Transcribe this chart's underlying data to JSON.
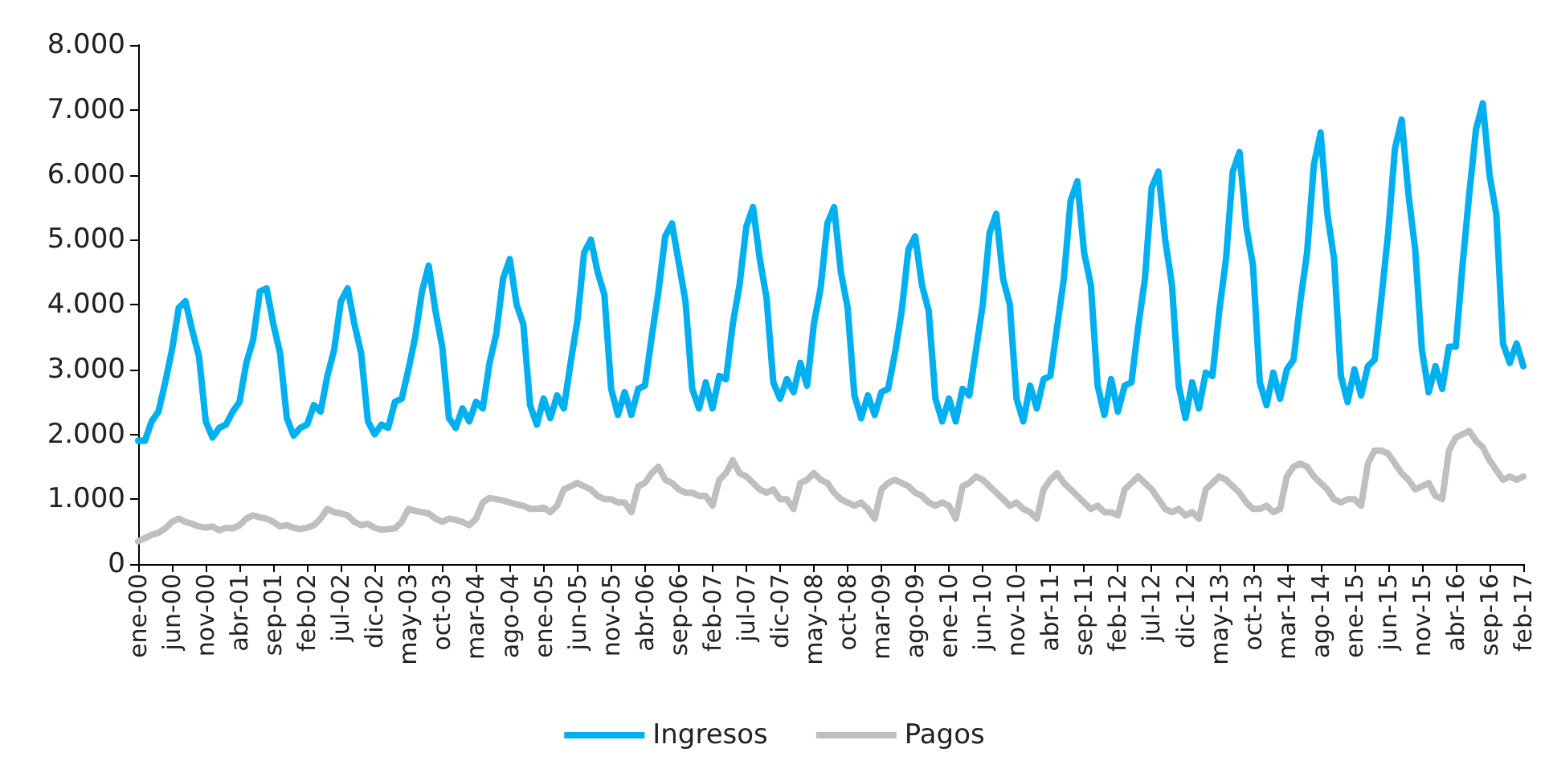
{
  "chart_data": {
    "type": "line",
    "categories": [
      "ene-00",
      null,
      null,
      null,
      null,
      "jun-00",
      null,
      null,
      null,
      null,
      "nov-00",
      null,
      null,
      null,
      null,
      "abr-01",
      null,
      null,
      null,
      null,
      "sep-01",
      null,
      null,
      null,
      null,
      "feb-02",
      null,
      null,
      null,
      null,
      "jul-02",
      null,
      null,
      null,
      null,
      "dic-02",
      null,
      null,
      null,
      null,
      "may-03",
      null,
      null,
      null,
      null,
      "oct-03",
      null,
      null,
      null,
      null,
      "mar-04",
      null,
      null,
      null,
      null,
      "ago-04",
      null,
      null,
      null,
      null,
      "ene-05",
      null,
      null,
      null,
      null,
      "jun-05",
      null,
      null,
      null,
      null,
      "nov-05",
      null,
      null,
      null,
      null,
      "abr-06",
      null,
      null,
      null,
      null,
      "sep-06",
      null,
      null,
      null,
      null,
      "feb-07",
      null,
      null,
      null,
      null,
      "jul-07",
      null,
      null,
      null,
      null,
      "dic-07",
      null,
      null,
      null,
      null,
      "may-08",
      null,
      null,
      null,
      null,
      "oct-08",
      null,
      null,
      null,
      null,
      "mar-09",
      null,
      null,
      null,
      null,
      "ago-09",
      null,
      null,
      null,
      null,
      "ene-10",
      null,
      null,
      null,
      null,
      "jun-10",
      null,
      null,
      null,
      null,
      "nov-10",
      null,
      null,
      null,
      null,
      "abr-11",
      null,
      null,
      null,
      null,
      "sep-11",
      null,
      null,
      null,
      null,
      "feb-12",
      null,
      null,
      null,
      null,
      "jul-12",
      null,
      null,
      null,
      null,
      "dic-12",
      null,
      null,
      null,
      null,
      "may-13",
      null,
      null,
      null,
      null,
      "oct-13",
      null,
      null,
      null,
      null,
      "mar-14",
      null,
      null,
      null,
      null,
      "ago-14",
      null,
      null,
      null,
      null,
      "ene-15",
      null,
      null,
      null,
      null,
      "jun-15",
      null,
      null,
      null,
      null,
      "nov-15",
      null,
      null,
      null,
      null,
      "abr-16",
      null,
      null,
      null,
      null,
      "sep-16",
      null,
      null,
      null,
      null,
      "feb-17"
    ],
    "series": [
      {
        "name": "Ingresos",
        "color": "#00b0f0",
        "values": [
          1900,
          1900,
          2200,
          2350,
          2800,
          3300,
          3950,
          4050,
          3600,
          3200,
          2200,
          1950,
          2100,
          2150,
          2350,
          2500,
          3100,
          3450,
          4200,
          4250,
          3700,
          3250,
          2250,
          1980,
          2100,
          2150,
          2450,
          2350,
          2900,
          3300,
          4050,
          4250,
          3700,
          3250,
          2200,
          2000,
          2150,
          2100,
          2500,
          2550,
          3000,
          3500,
          4200,
          4600,
          3900,
          3350,
          2250,
          2100,
          2400,
          2200,
          2500,
          2400,
          3100,
          3550,
          4400,
          4700,
          4000,
          3700,
          2450,
          2150,
          2550,
          2250,
          2600,
          2400,
          3100,
          3750,
          4800,
          5000,
          4500,
          4150,
          2700,
          2300,
          2650,
          2300,
          2700,
          2750,
          3500,
          4200,
          5050,
          5250,
          4650,
          4050,
          2700,
          2400,
          2800,
          2400,
          2900,
          2850,
          3700,
          4300,
          5200,
          5500,
          4700,
          4100,
          2800,
          2550,
          2850,
          2650,
          3100,
          2750,
          3700,
          4250,
          5250,
          5500,
          4500,
          3950,
          2600,
          2250,
          2600,
          2300,
          2650,
          2700,
          3250,
          3900,
          4850,
          5050,
          4300,
          3900,
          2550,
          2200,
          2550,
          2200,
          2700,
          2600,
          3300,
          4000,
          5100,
          5400,
          4400,
          4000,
          2550,
          2200,
          2750,
          2400,
          2850,
          2900,
          3650,
          4400,
          5600,
          5900,
          4800,
          4300,
          2750,
          2300,
          2850,
          2350,
          2750,
          2800,
          3650,
          4400,
          5800,
          6050,
          5000,
          4300,
          2750,
          2250,
          2800,
          2400,
          2950,
          2900,
          3900,
          4700,
          6050,
          6350,
          5200,
          4600,
          2800,
          2450,
          2950,
          2550,
          3000,
          3150,
          4050,
          4800,
          6150,
          6650,
          5400,
          4700,
          2900,
          2500,
          3000,
          2600,
          3050,
          3150,
          4100,
          5100,
          6400,
          6850,
          5700,
          4850,
          3300,
          2650,
          3050,
          2700,
          3350,
          3350,
          4600,
          5700,
          6700,
          7100,
          6000,
          5400,
          3400,
          3100,
          3400,
          3050
        ]
      },
      {
        "name": "Pagos",
        "color": "#bfbfbf",
        "values": [
          350,
          400,
          450,
          480,
          550,
          650,
          700,
          650,
          620,
          580,
          560,
          580,
          520,
          560,
          550,
          600,
          700,
          750,
          720,
          700,
          650,
          580,
          600,
          560,
          540,
          560,
          600,
          700,
          850,
          800,
          780,
          750,
          650,
          600,
          620,
          560,
          530,
          540,
          550,
          650,
          850,
          820,
          800,
          780,
          700,
          650,
          700,
          680,
          650,
          600,
          700,
          950,
          1020,
          1000,
          980,
          950,
          920,
          900,
          850,
          850,
          870,
          800,
          900,
          1150,
          1200,
          1250,
          1200,
          1150,
          1050,
          1000,
          1000,
          950,
          950,
          800,
          1200,
          1250,
          1400,
          1500,
          1300,
          1250,
          1150,
          1100,
          1100,
          1050,
          1050,
          900,
          1300,
          1400,
          1600,
          1400,
          1350,
          1250,
          1150,
          1100,
          1150,
          1000,
          1000,
          850,
          1250,
          1300,
          1400,
          1300,
          1250,
          1100,
          1000,
          950,
          900,
          950,
          850,
          700,
          1150,
          1250,
          1300,
          1250,
          1200,
          1100,
          1050,
          950,
          900,
          950,
          900,
          700,
          1200,
          1250,
          1350,
          1300,
          1200,
          1100,
          1000,
          900,
          950,
          850,
          800,
          700,
          1150,
          1300,
          1400,
          1250,
          1150,
          1050,
          950,
          850,
          900,
          800,
          800,
          750,
          1150,
          1250,
          1350,
          1250,
          1150,
          1000,
          850,
          800,
          850,
          750,
          800,
          700,
          1150,
          1250,
          1350,
          1300,
          1200,
          1100,
          950,
          850,
          850,
          900,
          800,
          850,
          1350,
          1500,
          1550,
          1500,
          1350,
          1250,
          1150,
          1000,
          950,
          1000,
          1000,
          900,
          1550,
          1750,
          1750,
          1700,
          1550,
          1400,
          1300,
          1150,
          1200,
          1250,
          1050,
          1000,
          1750,
          1950,
          2000,
          2050,
          1900,
          1800,
          1600,
          1450,
          1300,
          1350,
          1300,
          1350
        ]
      }
    ],
    "ylim": [
      0,
      8000
    ],
    "yticks": [
      0,
      {
        "value": 1000,
        "label": "1.000"
      },
      {
        "value": 2000,
        "label": "2.000"
      },
      {
        "value": 3000,
        "label": "3.000"
      },
      {
        "value": 4000,
        "label": "4.000"
      },
      {
        "value": 5000,
        "label": "5.000"
      },
      {
        "value": 6000,
        "label": "6.000"
      },
      {
        "value": 7000,
        "label": "7.000"
      },
      {
        "value": 8000,
        "label": "8.000"
      }
    ],
    "grid": false,
    "legend": "bottom",
    "marker": "none",
    "line_style": "solid"
  }
}
